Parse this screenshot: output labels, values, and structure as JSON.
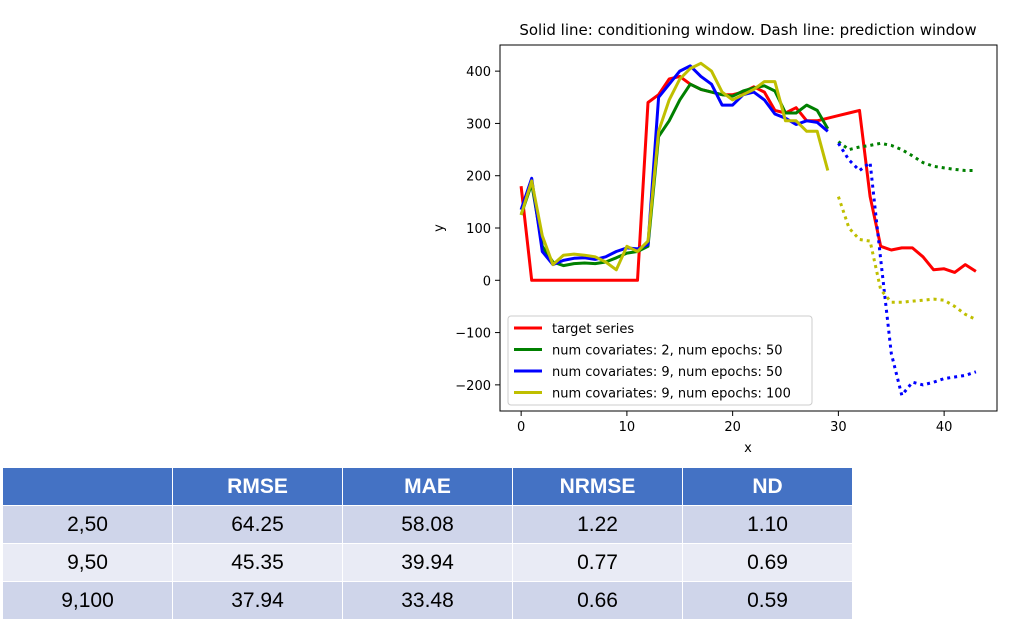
{
  "chart_data": {
    "type": "line",
    "title": "Solid line: conditioning window. Dash line: prediction window",
    "xlabel": "x",
    "ylabel": "y",
    "xlim": [
      -2,
      45
    ],
    "ylim": [
      -250,
      450
    ],
    "xticks": [
      0,
      10,
      20,
      30,
      40
    ],
    "yticks": [
      -200,
      -100,
      0,
      100,
      200,
      300,
      400
    ],
    "legend_position": "lower-left",
    "series": [
      {
        "name": "target series",
        "color": "#ff0000",
        "style": "solid",
        "x": [
          0,
          1,
          2,
          3,
          4,
          5,
          6,
          7,
          8,
          9,
          10,
          11,
          12,
          13,
          14,
          15,
          16,
          17,
          18,
          19,
          20,
          21,
          22,
          23,
          24,
          25,
          26,
          27,
          28,
          29,
          30,
          31,
          32,
          33,
          34,
          35,
          36,
          37,
          38,
          39,
          40,
          41,
          42,
          43
        ],
        "y": [
          180,
          0,
          0,
          0,
          0,
          0,
          0,
          0,
          0,
          0,
          0,
          0,
          340,
          355,
          385,
          390,
          375,
          365,
          360,
          355,
          355,
          360,
          370,
          360,
          325,
          320,
          330,
          305,
          305,
          310,
          315,
          320,
          325,
          160,
          65,
          58,
          62,
          62,
          45,
          20,
          22,
          15,
          30,
          17
        ]
      },
      {
        "name": "num covariates: 2, num epochs: 50",
        "color": "#008000",
        "style": "solid",
        "x": [
          0,
          1,
          2,
          3,
          4,
          5,
          6,
          7,
          8,
          9,
          10,
          11,
          12,
          13,
          14,
          15,
          16,
          17,
          18,
          19,
          20,
          21,
          22,
          23,
          24,
          25,
          26,
          27,
          28,
          29
        ],
        "y": [
          125,
          185,
          65,
          35,
          28,
          32,
          33,
          32,
          35,
          43,
          52,
          55,
          65,
          275,
          305,
          345,
          375,
          365,
          360,
          355,
          352,
          362,
          368,
          372,
          362,
          320,
          320,
          335,
          325,
          290
        ]
      },
      {
        "name": "num covariates: 2, num epochs: 50 (prediction)",
        "color": "#008000",
        "style": "dotted",
        "x": [
          30,
          31,
          32,
          33,
          34,
          35,
          36,
          37,
          38,
          39,
          40,
          41,
          42,
          43
        ],
        "y": [
          265,
          250,
          255,
          258,
          262,
          258,
          250,
          238,
          225,
          218,
          215,
          212,
          210,
          210
        ]
      },
      {
        "name": "num covariates: 9, num epochs: 50",
        "color": "#0000ff",
        "style": "solid",
        "x": [
          0,
          1,
          2,
          3,
          4,
          5,
          6,
          7,
          8,
          9,
          10,
          11,
          12,
          13,
          14,
          15,
          16,
          17,
          18,
          19,
          20,
          21,
          22,
          23,
          24,
          25,
          26,
          27,
          28,
          29
        ],
        "y": [
          135,
          195,
          55,
          30,
          38,
          42,
          43,
          40,
          45,
          55,
          62,
          60,
          68,
          350,
          375,
          400,
          410,
          390,
          375,
          335,
          335,
          355,
          360,
          345,
          318,
          310,
          298,
          305,
          302,
          285
        ]
      },
      {
        "name": "num covariates: 9, num epochs: 50 (prediction)",
        "color": "#0000ff",
        "style": "dotted",
        "x": [
          30,
          31,
          32,
          33,
          34,
          35,
          36,
          37,
          38,
          39,
          40,
          41,
          42,
          43
        ],
        "y": [
          262,
          230,
          210,
          225,
          40,
          -140,
          -220,
          -195,
          -200,
          -195,
          -188,
          -185,
          -182,
          -175
        ]
      },
      {
        "name": "num covariates: 9, num epochs: 100",
        "color": "#bfbf00",
        "style": "solid",
        "x": [
          0,
          1,
          2,
          3,
          4,
          5,
          6,
          7,
          8,
          9,
          10,
          11,
          12,
          13,
          14,
          15,
          16,
          17,
          18,
          19,
          20,
          21,
          22,
          23,
          24,
          25,
          26,
          27,
          28,
          29
        ],
        "y": [
          125,
          190,
          85,
          30,
          48,
          50,
          48,
          45,
          35,
          20,
          65,
          55,
          75,
          285,
          345,
          385,
          405,
          415,
          400,
          360,
          345,
          355,
          365,
          380,
          380,
          305,
          305,
          285,
          285,
          210
        ]
      },
      {
        "name": "num covariates: 9, num epochs: 100 (prediction)",
        "color": "#bfbf00",
        "style": "dotted",
        "x": [
          30,
          31,
          32,
          33,
          34,
          35,
          36,
          37,
          38,
          39,
          40,
          41,
          42,
          43
        ],
        "y": [
          160,
          100,
          78,
          75,
          -18,
          -42,
          -42,
          -40,
          -38,
          -36,
          -38,
          -50,
          -65,
          -75
        ]
      }
    ],
    "legend": [
      {
        "label": "target series",
        "color": "#ff0000"
      },
      {
        "label": "num covariates: 2, num epochs: 50",
        "color": "#008000"
      },
      {
        "label": "num covariates: 9, num epochs: 50",
        "color": "#0000ff"
      },
      {
        "label": "num covariates: 9, num epochs: 100",
        "color": "#bfbf00"
      }
    ]
  },
  "table": {
    "headers": [
      "",
      "RMSE",
      "MAE",
      "NRMSE",
      "ND"
    ],
    "rows": [
      [
        "2,50",
        "64.25",
        "58.08",
        "1.22",
        "1.10"
      ],
      [
        "9,50",
        "45.35",
        "39.94",
        "0.77",
        "0.69"
      ],
      [
        "9,100",
        "37.94",
        "33.48",
        "0.66",
        "0.59"
      ]
    ]
  }
}
